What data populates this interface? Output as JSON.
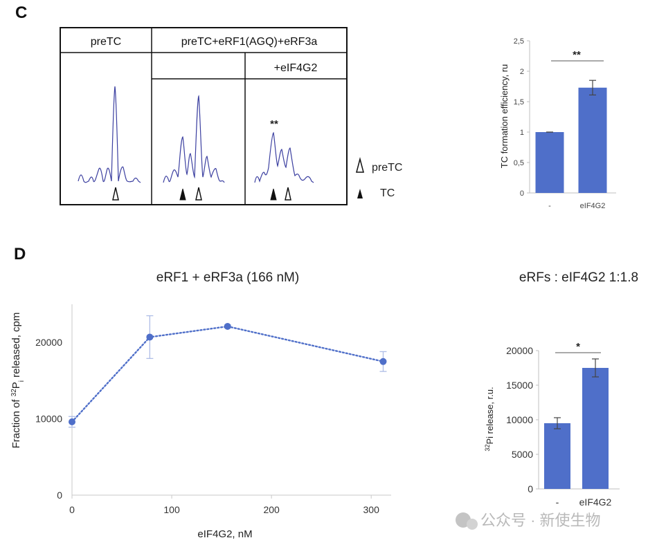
{
  "panels": {
    "c_letter": "C",
    "d_letter": "D"
  },
  "table": {
    "col1_header": "preTC",
    "col23_header": "preTC+eRF1(AGQ)+eRF3a",
    "col3_subheader": "+eIF4G2",
    "marker": "**",
    "marker_color": "#b22222",
    "trace_color": "#3b3fa0"
  },
  "legend": {
    "open_label": "preTC",
    "filled_label": "TC"
  },
  "chart_data": [
    {
      "id": "c-bar",
      "type": "bar",
      "categories": [
        "-",
        "eIF4G2"
      ],
      "values": [
        1.0,
        1.73
      ],
      "errors": [
        0.0,
        0.12
      ],
      "ylabel": "TC formation efficiency, ru",
      "ylim": [
        0,
        2.5
      ],
      "yticks": [
        "0",
        "0,5",
        "1",
        "1,5",
        "2",
        "2,5"
      ],
      "significance": "**",
      "color": "#4f6fc9"
    },
    {
      "id": "d-line",
      "type": "line",
      "title": "eRF1 + eRF3a (166 nM)",
      "xlabel": "eIF4G2, nM",
      "ylabel_pre": "Fraction  of ",
      "ylabel_sup": "32",
      "ylabel_mid": "P",
      "ylabel_sub": "i",
      "ylabel_post": " released, cpm",
      "x": [
        0,
        78,
        156,
        312
      ],
      "y": [
        9600,
        20700,
        22100,
        17500
      ],
      "errors": [
        700,
        2800,
        200,
        1300
      ],
      "xlim": [
        0,
        320
      ],
      "ylim": [
        0,
        25000
      ],
      "xticks": [
        "0",
        "100",
        "200",
        "300"
      ],
      "yticks": [
        "0",
        "10000",
        "20000"
      ],
      "color": "#4f6fc9"
    },
    {
      "id": "d-bar",
      "type": "bar",
      "title": "eRFs : eIF4G2 1:1.8",
      "categories": [
        "-",
        "eIF4G2"
      ],
      "values": [
        9500,
        17500
      ],
      "errors": [
        800,
        1300
      ],
      "ylabel_sup": "32",
      "ylabel_rest": "Pi release, r.u.",
      "ylim": [
        0,
        20000
      ],
      "yticks": [
        "0",
        "5000",
        "10000",
        "15000",
        "20000"
      ],
      "significance": "*",
      "color": "#4f6fc9"
    }
  ],
  "watermark": "公众号 · 新使生物"
}
